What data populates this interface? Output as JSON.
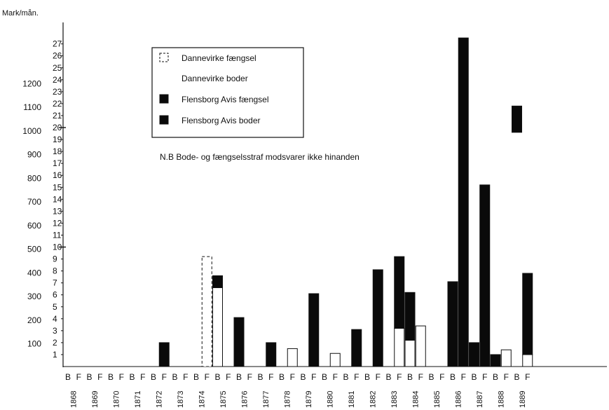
{
  "chart_data": {
    "type": "bar",
    "unit_label": "Mark/mån.",
    "note": "N.B  Bode- og fængselsstraf modsvarer ikke hinanden",
    "left_axis_ticks": [
      "100",
      "200",
      "300",
      "400",
      "500",
      "600",
      "700",
      "800",
      "900",
      "1000",
      "1100",
      "1200"
    ],
    "right_axis_ticks": [
      "1",
      "2",
      "3",
      "4",
      "5",
      "6",
      "7",
      "8",
      "9",
      "10",
      "11",
      "12",
      "13",
      "14",
      "15",
      "16",
      "17",
      "18",
      "19",
      "20",
      "21",
      "22",
      "23",
      "24",
      "25",
      "26",
      "27"
    ],
    "bar_axis_max": 27,
    "legend": [
      {
        "label": "Dannevirke fængsel",
        "style": "dashed"
      },
      {
        "label": "Dannevirke boder",
        "style": "white"
      },
      {
        "label": "Flensborg Avis fængsel",
        "style": "black"
      },
      {
        "label": "Flensborg Avis boder",
        "style": "black"
      }
    ],
    "years": [
      "1868",
      "1869",
      "1870",
      "1871",
      "1872",
      "1873",
      "1874",
      "1875",
      "1876",
      "1877",
      "1878",
      "1879",
      "1880",
      "1881",
      "1882",
      "1883",
      "1884",
      "1885",
      "1886",
      "1887",
      "1888",
      "1889"
    ],
    "bar_letters": [
      "B",
      "F"
    ],
    "bars": [
      {
        "year": "1872",
        "type": "F",
        "segments": [
          {
            "style": "black",
            "value": 2
          }
        ]
      },
      {
        "year": "1874",
        "type": "F",
        "segments": [
          {
            "style": "dashed",
            "value": 9.2
          }
        ]
      },
      {
        "year": "1875",
        "type": "B",
        "segments": [
          {
            "style": "white",
            "value": 6.6
          },
          {
            "style": "black",
            "value": 1.0
          }
        ]
      },
      {
        "year": "1876",
        "type": "B",
        "segments": [
          {
            "style": "black",
            "value": 4.1
          }
        ]
      },
      {
        "year": "1877",
        "type": "F",
        "segments": [
          {
            "style": "black",
            "value": 2
          }
        ]
      },
      {
        "year": "1878",
        "type": "F",
        "segments": [
          {
            "style": "white",
            "value": 1.5
          }
        ]
      },
      {
        "year": "1879",
        "type": "F",
        "segments": [
          {
            "style": "black",
            "value": 6.1
          }
        ]
      },
      {
        "year": "1880",
        "type": "F",
        "segments": [
          {
            "style": "white",
            "value": 1.1
          }
        ]
      },
      {
        "year": "1881",
        "type": "F",
        "segments": [
          {
            "style": "black",
            "value": 3.1
          }
        ]
      },
      {
        "year": "1882",
        "type": "F",
        "segments": [
          {
            "style": "black",
            "value": 8.1
          }
        ]
      },
      {
        "year": "1883",
        "type": "F",
        "segments": [
          {
            "style": "white",
            "value": 3.2
          },
          {
            "style": "black",
            "value": 6.0
          }
        ]
      },
      {
        "year": "1884",
        "type": "B",
        "segments": [
          {
            "style": "white",
            "value": 2.2
          },
          {
            "style": "black",
            "value": 4.0
          }
        ]
      },
      {
        "year": "1884",
        "type": "F",
        "segments": [
          {
            "style": "white",
            "value": 3.4
          }
        ]
      },
      {
        "year": "1886",
        "type": "B",
        "segments": [
          {
            "style": "black",
            "value": 7.1
          }
        ]
      },
      {
        "year": "1886",
        "type": "F",
        "segments": [
          {
            "style": "black",
            "value": 27.5
          }
        ]
      },
      {
        "year": "1887",
        "type": "B",
        "segments": [
          {
            "style": "black",
            "value": 2
          }
        ]
      },
      {
        "year": "1887",
        "type": "F",
        "segments": [
          {
            "style": "black",
            "value": 15.2
          }
        ]
      },
      {
        "year": "1888",
        "type": "B",
        "segments": [
          {
            "style": "black",
            "value": 1
          }
        ]
      },
      {
        "year": "1888",
        "type": "F",
        "segments": [
          {
            "style": "white",
            "value": 1.4
          }
        ]
      },
      {
        "year": "1889",
        "type": "B",
        "segments": [
          {
            "style": "black",
            "value": 2.2,
            "floating_base": 19.6
          }
        ]
      },
      {
        "year": "1889",
        "type": "F",
        "segments": [
          {
            "style": "white",
            "value": 1.0
          },
          {
            "style": "black",
            "value": 6.8
          }
        ]
      }
    ]
  }
}
